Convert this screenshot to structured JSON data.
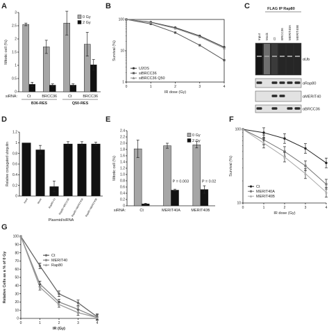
{
  "panels": {
    "A": "A",
    "B": "B",
    "C": "C",
    "D": "D",
    "E": "E",
    "F": "F",
    "G": "G"
  },
  "chart_data": [
    {
      "panel": "A",
      "type": "bar",
      "ylabel": "Mitotic cell (%)",
      "ylim": [
        0,
        3
      ],
      "yticks": [
        "0",
        "0.5",
        "1",
        "1.5",
        "2",
        "2.5",
        "3"
      ],
      "row_label": "siRNA:",
      "categories": [
        "Ct",
        "BRCC36",
        "Ct",
        "BRCC36"
      ],
      "groups": [
        "B36-RES",
        "Q50-RES"
      ],
      "legend": [
        "0 Gy",
        "2 Gy"
      ],
      "series": [
        {
          "name": "0 Gy",
          "values": [
            2.55,
            1.7,
            2.6,
            1.8
          ],
          "err": [
            0.05,
            0.25,
            0.45,
            0.45
          ]
        },
        {
          "name": "2 Gy",
          "values": [
            0.28,
            0.25,
            0.25,
            1.02
          ],
          "err": [
            0.08,
            0.05,
            0.05,
            0.2
          ]
        }
      ]
    },
    {
      "panel": "B",
      "type": "line",
      "xlabel": "IR dose (Gy)",
      "ylabel": "Survival (%)",
      "xticks": [
        "0",
        "1",
        "2",
        "3",
        "4"
      ],
      "yticks": [
        "1",
        "10",
        "100"
      ],
      "log_y": true,
      "x": [
        0,
        1,
        2,
        3,
        4
      ],
      "series": [
        {
          "name": "U2OS",
          "values": [
            100,
            82,
            55,
            30,
            13
          ]
        },
        {
          "name": "siBRCC36",
          "values": [
            100,
            72,
            38,
            15,
            5
          ]
        },
        {
          "name": "siBRCC36 Q50",
          "values": [
            100,
            80,
            52,
            28,
            12
          ]
        }
      ]
    },
    {
      "panel": "C",
      "type": "blot",
      "title": "FLAG IP Rap80",
      "lanes": [
        "Input",
        "Mock",
        "Ct",
        "BRCC36",
        "MERIT40A",
        "MERIT40B"
      ],
      "rows": [
        "αUb",
        "αRap80",
        "αMERIT40",
        "αBRCC36"
      ]
    },
    {
      "panel": "D",
      "type": "bar",
      "ylabel": "Relative conjugated ubiquitin",
      "xlabel": "Plasmid/siRNA",
      "ylim": [
        0,
        1.2
      ],
      "yticks": [
        "0",
        "0.2",
        "0.4",
        "0.6",
        "0.8",
        "1",
        "1.2"
      ],
      "categories": [
        "Input",
        "Mock",
        "Rap80+Ct",
        "Rap80+BRCC36",
        "Rap80+MERIT40A",
        "Rap80+MERIT40B"
      ],
      "values": [
        1.0,
        0.87,
        0.18,
        0.98,
        0.98,
        0.98
      ],
      "err": [
        0.0,
        0.08,
        0.1,
        0.04,
        0.04,
        0.03
      ]
    },
    {
      "panel": "E",
      "type": "bar",
      "ylabel": "Mitotic cell (%)",
      "ylim": [
        0,
        2.4
      ],
      "yticks": [
        "0",
        "0.2",
        "0.4",
        "0.6",
        "0.8",
        "1.0",
        "1.2",
        "1.4",
        "1.6",
        "1.8",
        "2.0",
        "2.2",
        "2.4"
      ],
      "row_label": "siRNA:",
      "categories": [
        "Ct",
        "MERIT40A",
        "MERIT40B"
      ],
      "legend": [
        "0 Gy",
        "2 Gy"
      ],
      "annotations": [
        "P = 0.003",
        "P = 0.02"
      ],
      "series": [
        {
          "name": "0 Gy",
          "values": [
            1.82,
            1.92,
            1.95
          ],
          "err": [
            0.28,
            0.08,
            0.1
          ]
        },
        {
          "name": "2 Gy",
          "values": [
            0.06,
            0.5,
            0.52
          ],
          "err": [
            0.02,
            0.03,
            0.12
          ]
        }
      ]
    },
    {
      "panel": "F",
      "type": "line",
      "xlabel": "IR dose (Gy)",
      "ylabel": "Survival (%)",
      "xticks": [
        "0",
        "1",
        "2",
        "3",
        "4"
      ],
      "yticks": [
        "10",
        "100"
      ],
      "log_y": true,
      "x": [
        0,
        1,
        2,
        3,
        4
      ],
      "series": [
        {
          "name": "Ct",
          "values": [
            100,
            90,
            75,
            55,
            35
          ]
        },
        {
          "name": "MERIT40A",
          "values": [
            100,
            72,
            50,
            32,
            18
          ]
        },
        {
          "name": "MERIT40B",
          "values": [
            100,
            65,
            42,
            25,
            14
          ]
        }
      ]
    },
    {
      "panel": "G",
      "type": "line",
      "xlabel": "IR (Gy)",
      "ylabel": "Relative Cells as a % of 0 Gy",
      "ylim": [
        0,
        100
      ],
      "yticks": [
        "0",
        "10",
        "20",
        "30",
        "40",
        "50",
        "60",
        "70",
        "80",
        "90",
        "100"
      ],
      "xticks": [
        "0",
        "1",
        "2",
        "3",
        "4"
      ],
      "x": [
        0,
        1,
        2,
        3,
        4
      ],
      "series": [
        {
          "name": "Ct",
          "values": [
            100,
            64,
            30,
            19,
            2
          ]
        },
        {
          "name": "MERIT40",
          "values": [
            100,
            42,
            20,
            11,
            1
          ]
        },
        {
          "name": "Rap80",
          "values": [
            100,
            38,
            17,
            7,
            1
          ]
        }
      ]
    }
  ]
}
